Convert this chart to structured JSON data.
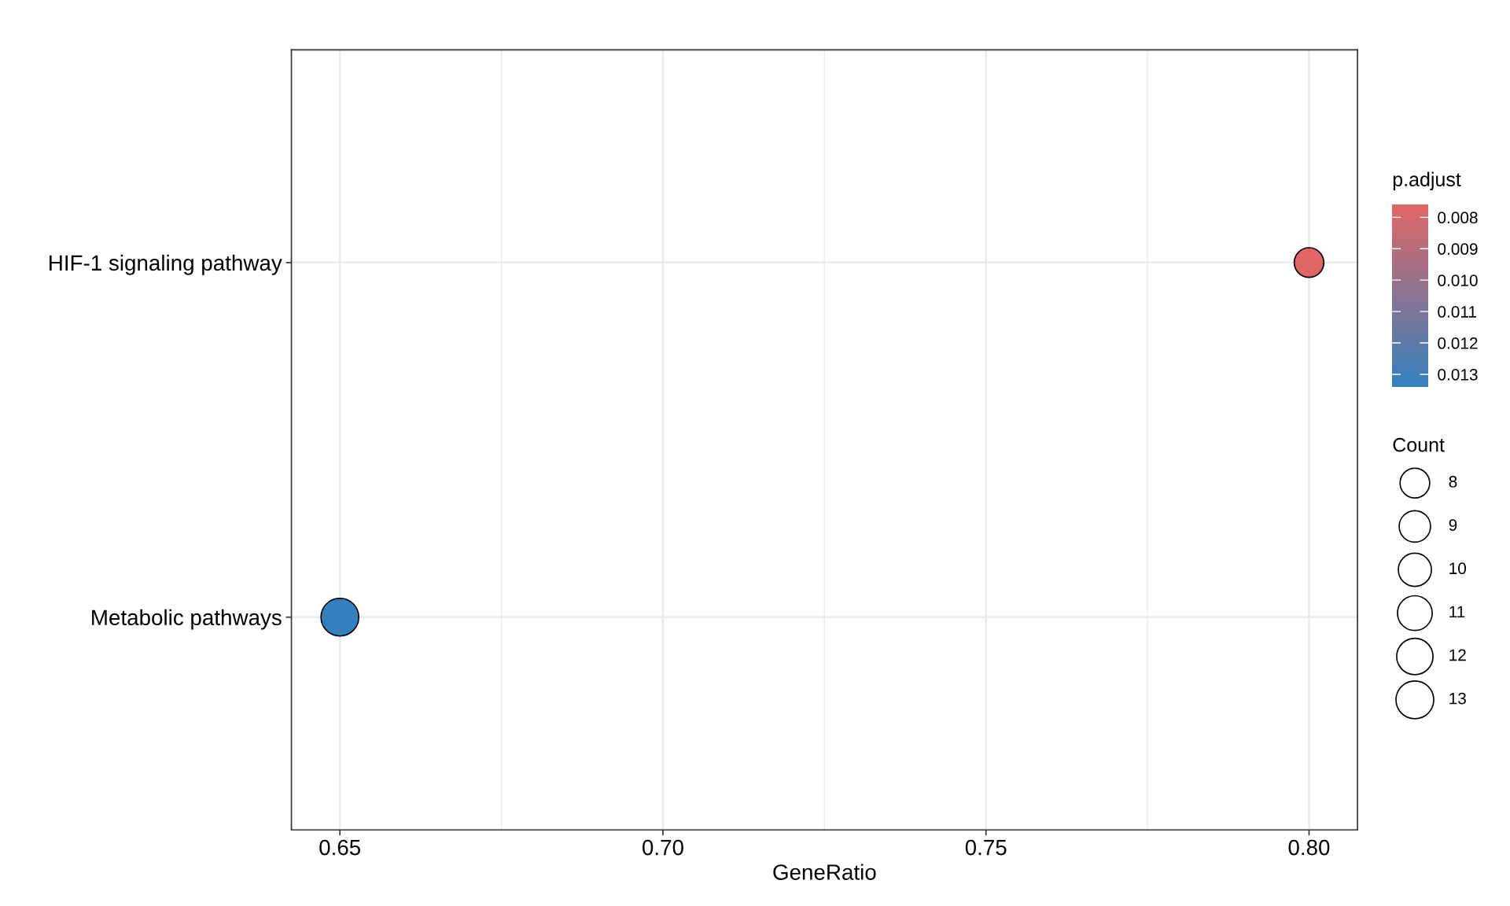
{
  "chart_data": {
    "type": "bubble",
    "categories": [
      "HIF-1 signaling pathway",
      "Metabolic pathways"
    ],
    "orientation": "horizontal",
    "values": [
      0.8,
      0.65
    ],
    "sizes": [
      8,
      13
    ],
    "cvalues": [
      0.0076,
      0.0134
    ],
    "colors": [
      "#e06666",
      "#3480be"
    ],
    "size_legend": [
      8,
      9,
      10,
      11,
      12,
      13
    ],
    "xlabel": "GeneRatio",
    "clabel": "p.adjust",
    "legend_title": "Count",
    "clim": [
      0.0076,
      0.0134
    ],
    "cticks": [
      {
        "value": 0.008,
        "label": "0.008"
      },
      {
        "value": 0.009,
        "label": "0.009"
      },
      {
        "value": 0.01,
        "label": "0.010"
      },
      {
        "value": 0.011,
        "label": "0.011"
      },
      {
        "value": 0.012,
        "label": "0.012"
      },
      {
        "value": 0.013,
        "label": "0.013"
      }
    ],
    "xlim": [
      0.6425,
      0.8075
    ],
    "xticks": [
      {
        "value": 0.65,
        "label": "0.65"
      },
      {
        "value": 0.7,
        "label": "0.70"
      },
      {
        "value": 0.75,
        "label": "0.75"
      },
      {
        "value": 0.8,
        "label": "0.80"
      }
    ],
    "grid": true
  }
}
